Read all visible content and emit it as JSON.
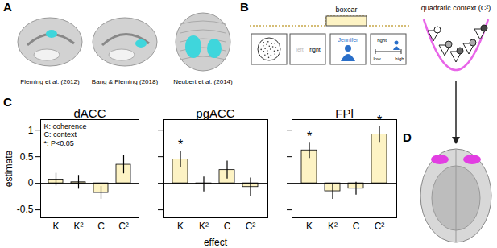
{
  "panel_labels": [
    "A",
    "B",
    "C",
    "D"
  ],
  "brain_maps": [
    {
      "citation": "Fleming et al. (2012)",
      "color": "#3fd6dc"
    },
    {
      "citation": "Bang & Fleming (2018)",
      "color": "#3fd6dc"
    },
    {
      "citation": "Neubert et al. (2014)",
      "color": "#3fd6dc"
    }
  ],
  "task": {
    "boxcar_label": "boxcar",
    "screens": [
      [],
      [
        "left",
        "right"
      ],
      [
        "Jennifer"
      ],
      [
        "right",
        "low",
        "high"
      ]
    ]
  },
  "context": {
    "label": "quadratic context (C²)",
    "color": "#e23ee2"
  },
  "legend_text": [
    "K: coherence",
    "C: context",
    "*: P<0.05"
  ],
  "chart_data": [
    {
      "type": "bar",
      "title": "dACC",
      "categories": [
        "K",
        "K²",
        "C",
        "C²"
      ],
      "values": [
        0.07,
        0.02,
        -0.18,
        0.35
      ],
      "errors": [
        0.12,
        0.13,
        0.12,
        0.17
      ],
      "annotations": [],
      "color": "#fdf3c4",
      "ylim": [
        -0.65,
        1.2
      ],
      "yticks": [
        -0.5,
        0,
        0.5,
        1
      ],
      "y_label": "estimate"
    },
    {
      "type": "bar",
      "title": "pgACC",
      "categories": [
        "K",
        "K²",
        "C",
        "C²"
      ],
      "values": [
        0.45,
        -0.02,
        0.25,
        -0.07
      ],
      "errors": [
        0.16,
        0.14,
        0.17,
        0.17
      ],
      "annotations": [
        {
          "category": "K",
          "text": "*"
        }
      ],
      "color": "#fdf3c4",
      "ylim": [
        -0.65,
        1.2
      ],
      "yticks": [
        -0.5,
        0,
        0.5,
        1
      ],
      "x_label": "effect",
      "tick_labels": "x"
    },
    {
      "type": "bar",
      "title": "FPl",
      "categories": [
        "K",
        "K²",
        "C",
        "C²"
      ],
      "values": [
        0.62,
        -0.15,
        -0.1,
        0.92
      ],
      "errors": [
        0.15,
        0.15,
        0.12,
        0.15
      ],
      "annotations": [
        {
          "category": "K",
          "text": "*"
        },
        {
          "category": "C²",
          "text": "*"
        }
      ],
      "color": "#fdf3c4",
      "ylim": [
        -0.65,
        1.2
      ],
      "yticks": [
        -0.5,
        0,
        0.5,
        1
      ],
      "tick_labels": "x"
    }
  ]
}
